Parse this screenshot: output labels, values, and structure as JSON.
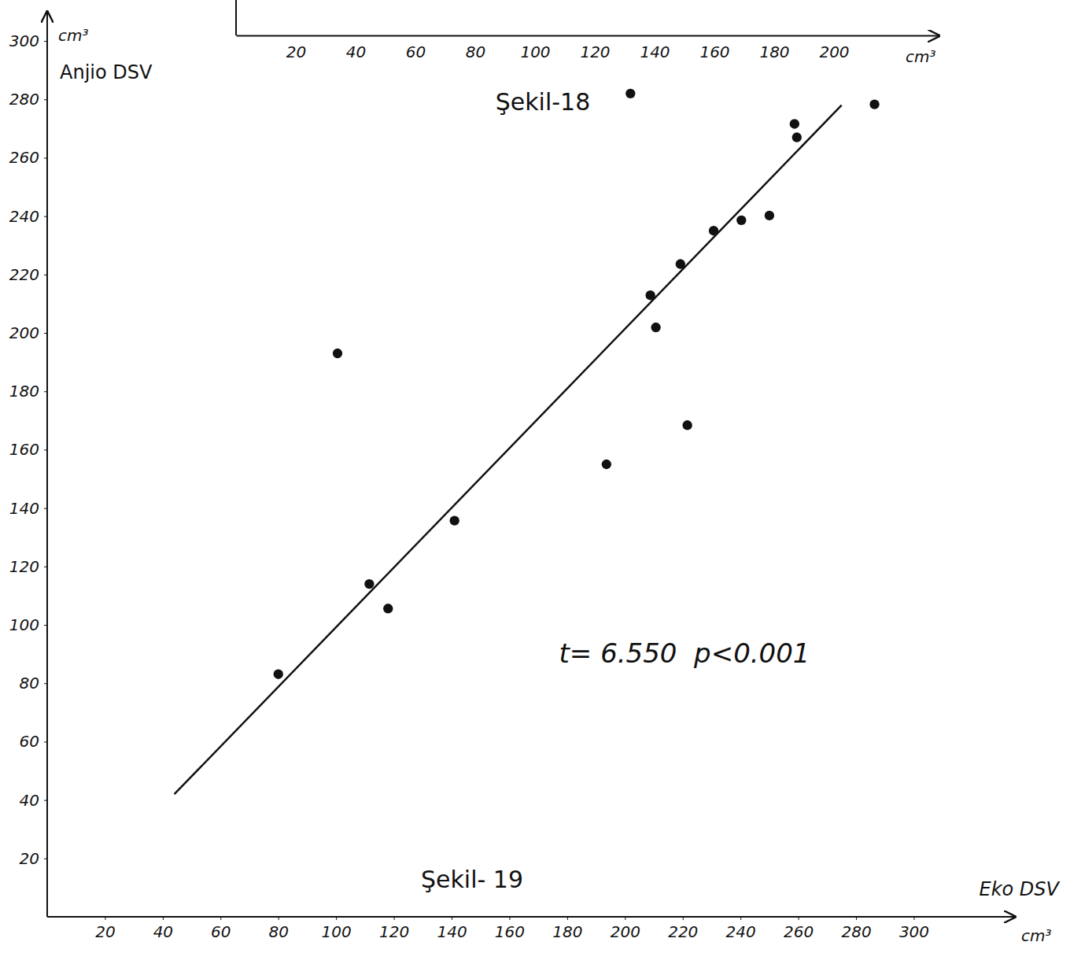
{
  "chart_data": [
    {
      "type": "axis",
      "title": "Şekil-18",
      "x_unit": "cm³",
      "xlim": [
        0,
        235
      ],
      "xticks": [
        20,
        40,
        60,
        80,
        100,
        120,
        140,
        160,
        180,
        200
      ]
    },
    {
      "type": "scatter",
      "title": "Şekil- 19",
      "x_label": "Eko DSV",
      "x_unit": "cm³",
      "y_label": "Anjio DSV",
      "y_unit": "cm³",
      "x": [
        80,
        100.5,
        111.5,
        118,
        141,
        193.6,
        208.8,
        210.7,
        219.2,
        221.6,
        230.7,
        240.3,
        250,
        258.7,
        259.5,
        286.4,
        201.9
      ],
      "y": [
        83.1,
        193,
        114,
        105.6,
        135.7,
        155,
        212.9,
        201.9,
        223.6,
        168.4,
        235,
        238.6,
        240.2,
        271.6,
        267,
        278.3,
        282
      ],
      "xlim": [
        0,
        335
      ],
      "ylim": [
        0,
        310
      ],
      "xticks": [
        20,
        40,
        60,
        80,
        100,
        120,
        140,
        160,
        180,
        200,
        220,
        240,
        260,
        280,
        300
      ],
      "yticks": [
        20,
        40,
        60,
        80,
        100,
        120,
        140,
        160,
        180,
        200,
        220,
        240,
        260,
        280,
        300
      ],
      "trend_line": {
        "x": [
          44,
          275
        ],
        "y": [
          42,
          278
        ]
      },
      "annotations": [
        {
          "text": "t= 6.550  p<0.001"
        }
      ],
      "color": "#111111",
      "marker": "circle",
      "grid": false
    }
  ]
}
